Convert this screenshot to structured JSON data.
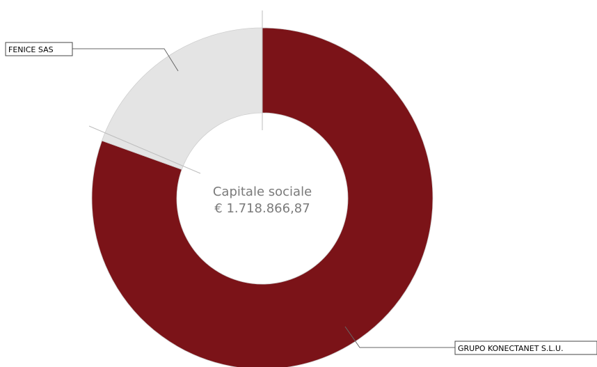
{
  "chart_data": {
    "type": "pie",
    "donut": true,
    "center_label": "Capitale sociale",
    "center_value": "€ 1.718.866,87",
    "slices": [
      {
        "label": "GRUPO KONECTANET S.L.U.",
        "value": 80.5,
        "color": "#7b1318"
      },
      {
        "label": "FENICE SAS",
        "value": 19.5,
        "color": "#e4e4e4"
      }
    ],
    "legend": "none"
  }
}
